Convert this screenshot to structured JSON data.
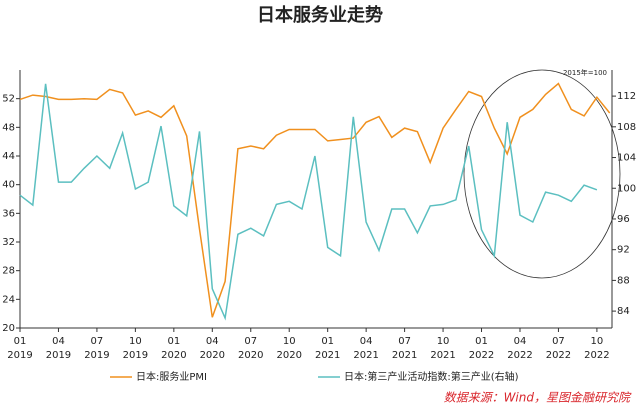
{
  "chart_data": {
    "type": "line",
    "title": "日本服务业走势",
    "annotation": "2015年=100",
    "source": "数据来源：Wind，星图金融研究院",
    "x": [
      "2019-01",
      "2019-02",
      "2019-03",
      "2019-04",
      "2019-05",
      "2019-06",
      "2019-07",
      "2019-08",
      "2019-09",
      "2019-10",
      "2019-11",
      "2019-12",
      "2020-01",
      "2020-02",
      "2020-03",
      "2020-04",
      "2020-05",
      "2020-06",
      "2020-07",
      "2020-08",
      "2020-09",
      "2020-10",
      "2020-11",
      "2020-12",
      "2021-01",
      "2021-02",
      "2021-03",
      "2021-04",
      "2021-05",
      "2021-06",
      "2021-07",
      "2021-08",
      "2021-09",
      "2021-10",
      "2021-11",
      "2021-12",
      "2022-01",
      "2022-02",
      "2022-03",
      "2022-04",
      "2022-05",
      "2022-06",
      "2022-07",
      "2022-08",
      "2022-09",
      "2022-10",
      "2022-11"
    ],
    "series": [
      {
        "name": "日本:服务业PMI",
        "color": "#f0901e",
        "values": [
          51.9,
          52.5,
          52.3,
          51.9,
          51.9,
          52.0,
          51.9,
          53.3,
          52.8,
          49.7,
          50.3,
          49.4,
          51.0,
          46.8,
          33.8,
          21.5,
          26.5,
          45.0,
          45.4,
          45.0,
          46.9,
          47.7,
          47.7,
          47.7,
          46.1,
          46.3,
          46.5,
          48.7,
          49.5,
          46.6,
          47.9,
          47.4,
          43.1,
          47.9,
          50.5,
          53.0,
          52.3,
          47.9,
          44.3,
          49.4,
          50.5,
          52.6,
          54.1,
          50.5,
          49.6,
          52.2,
          50.0
        ]
      },
      {
        "name": "日本:第三产业活动指数:第三产业(右轴)",
        "color": "#5bbfc0",
        "axis": "y2",
        "values": [
          99.1,
          97.8,
          113.6,
          100.8,
          100.8,
          102.6,
          104.2,
          102.6,
          107.2,
          99.9,
          100.8,
          108.1,
          97.7,
          96.4,
          107.4,
          86.9,
          83.1,
          94.0,
          94.8,
          93.8,
          97.9,
          98.3,
          97.3,
          104.2,
          92.3,
          91.2,
          109.3,
          95.6,
          91.9,
          97.3,
          97.3,
          94.2,
          97.7,
          97.9,
          98.5,
          105.5,
          94.6,
          91.2,
          108.6,
          96.5,
          95.6,
          99.5,
          99.1,
          98.3,
          100.4,
          99.8,
          null
        ]
      }
    ],
    "ylim": [
      20,
      56
    ],
    "yticks": [
      20,
      24,
      28,
      32,
      36,
      40,
      44,
      48,
      52
    ],
    "y2lim": [
      81.8,
      115.4
    ],
    "y2ticks": [
      84,
      88,
      92,
      96,
      100,
      104,
      108,
      112
    ],
    "xticks": [
      {
        "value": "2019-01",
        "label": [
          "01",
          "2019"
        ]
      },
      {
        "value": "2019-04",
        "label": [
          "04",
          "2019"
        ]
      },
      {
        "value": "2019-07",
        "label": [
          "07",
          "2019"
        ]
      },
      {
        "value": "2019-10",
        "label": [
          "10",
          "2019"
        ]
      },
      {
        "value": "2020-01",
        "label": [
          "01",
          "2020"
        ]
      },
      {
        "value": "2020-04",
        "label": [
          "04",
          "2020"
        ]
      },
      {
        "value": "2020-07",
        "label": [
          "07",
          "2020"
        ]
      },
      {
        "value": "2020-10",
        "label": [
          "10",
          "2020"
        ]
      },
      {
        "value": "2021-01",
        "label": [
          "01",
          "2021"
        ]
      },
      {
        "value": "2021-04",
        "label": [
          "04",
          "2021"
        ]
      },
      {
        "value": "2021-07",
        "label": [
          "07",
          "2021"
        ]
      },
      {
        "value": "2021-10",
        "label": [
          "10",
          "2021"
        ]
      },
      {
        "value": "2022-01",
        "label": [
          "01",
          "2022"
        ]
      },
      {
        "value": "2022-04",
        "label": [
          "04",
          "2022"
        ]
      },
      {
        "value": "2022-07",
        "label": [
          "07",
          "2022"
        ]
      },
      {
        "value": "2022-10",
        "label": [
          "10",
          "2022"
        ]
      }
    ]
  }
}
